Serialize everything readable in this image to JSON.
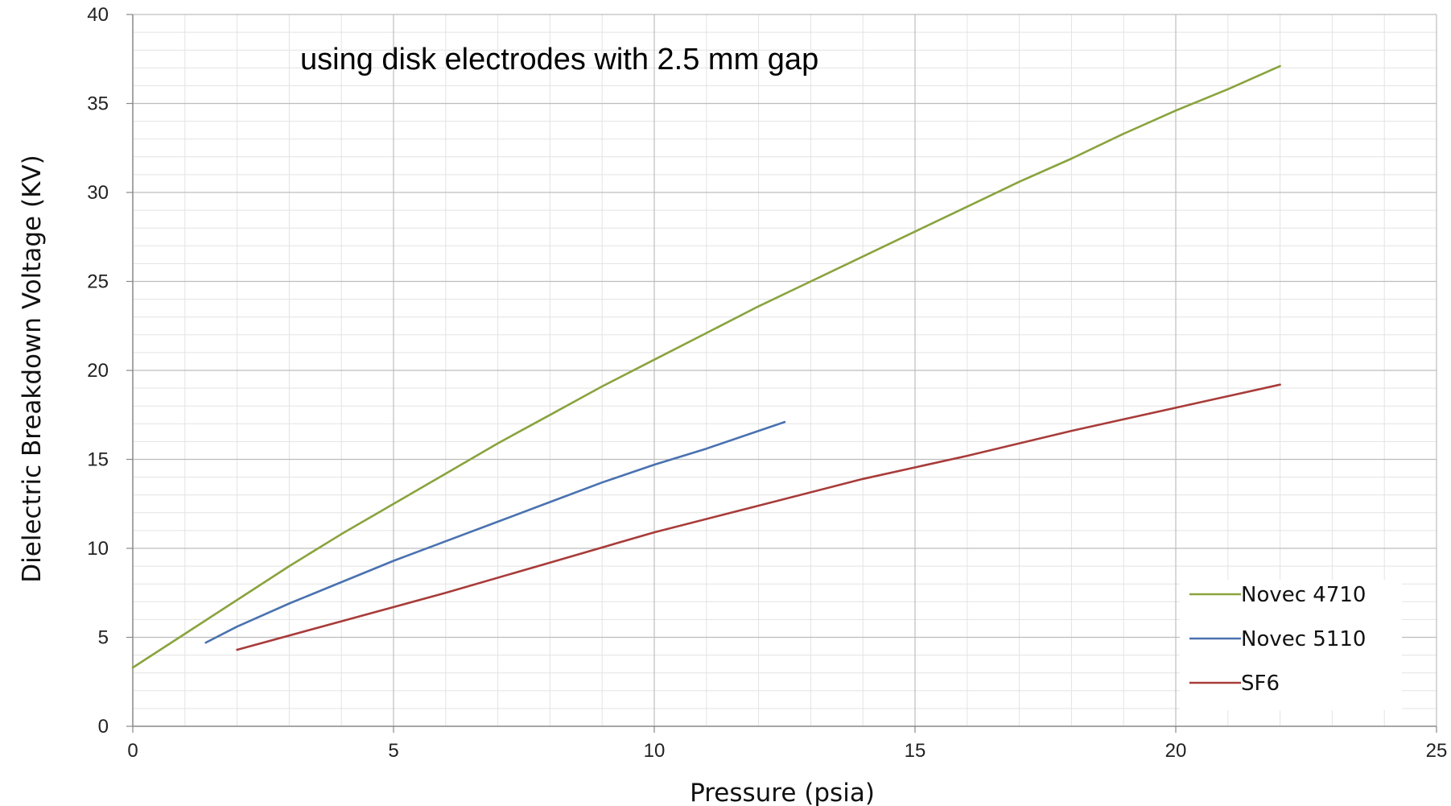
{
  "chart_data": {
    "type": "line",
    "title": "",
    "annotation": "using disk electrodes with 2.5 mm gap",
    "xlabel": "Pressure (psia)",
    "ylabel": "Dielectric Breakdown Voltage (KV)",
    "xlim": [
      0,
      25
    ],
    "ylim": [
      0,
      40
    ],
    "x_major_ticks": [
      0,
      5,
      10,
      15,
      20,
      25
    ],
    "y_major_ticks": [
      0,
      5,
      10,
      15,
      20,
      25,
      30,
      35,
      40
    ],
    "x_minor_step": 1,
    "y_minor_step": 1,
    "grid": true,
    "legend_position": "bottom-right",
    "series": [
      {
        "name": "Novec 4710",
        "color": "#8aa33e",
        "x": [
          0,
          1,
          2,
          3,
          4,
          5,
          6,
          7,
          8,
          9,
          10,
          11,
          12,
          13,
          14,
          15,
          16,
          17,
          18,
          19,
          20,
          21,
          22
        ],
        "y": [
          3.3,
          5.2,
          7.1,
          9.0,
          10.8,
          12.5,
          14.2,
          15.9,
          17.5,
          19.1,
          20.6,
          22.1,
          23.6,
          25.0,
          26.4,
          27.8,
          29.2,
          30.6,
          31.9,
          33.3,
          34.6,
          35.8,
          37.1
        ]
      },
      {
        "name": "Novec 5110",
        "color": "#4a72b0",
        "x": [
          1.4,
          2,
          3,
          4,
          5,
          6,
          7,
          8,
          9,
          10,
          11,
          12,
          12.5
        ],
        "y": [
          4.7,
          5.6,
          6.9,
          8.1,
          9.3,
          10.4,
          11.5,
          12.6,
          13.7,
          14.7,
          15.6,
          16.6,
          17.1
        ]
      },
      {
        "name": "SF6",
        "color": "#a83c3a",
        "x": [
          2,
          4,
          6,
          8,
          10,
          12,
          14,
          16,
          18,
          20,
          22
        ],
        "y": [
          4.3,
          5.9,
          7.5,
          9.2,
          10.9,
          12.4,
          13.9,
          15.2,
          16.6,
          17.9,
          19.2
        ]
      }
    ]
  }
}
